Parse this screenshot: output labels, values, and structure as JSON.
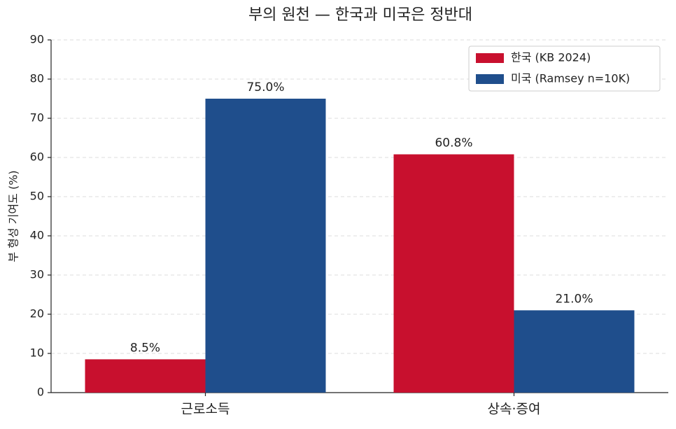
{
  "chart_data": {
    "type": "bar",
    "title": "부의 원천 — 한국과 미국은 정반대",
    "y_label": "부 형성 기여도 (%)",
    "categories": [
      "근로소득",
      "상속·증여"
    ],
    "series": [
      {
        "name": "한국 (KB 2024)",
        "color": "#c8102e",
        "values": [
          8.5,
          60.8
        ],
        "value_labels": [
          "8.5%",
          "60.8%"
        ]
      },
      {
        "name": "미국 (Ramsey n=10K)",
        "color": "#1f4e8c",
        "values": [
          75.0,
          21.0
        ],
        "value_labels": [
          "75.0%",
          "21.0%"
        ]
      }
    ],
    "ylim": [
      0,
      90
    ],
    "yticks": [
      0,
      10,
      20,
      30,
      40,
      50,
      60,
      70,
      80,
      90
    ],
    "grid": true,
    "legend": "upper right"
  }
}
